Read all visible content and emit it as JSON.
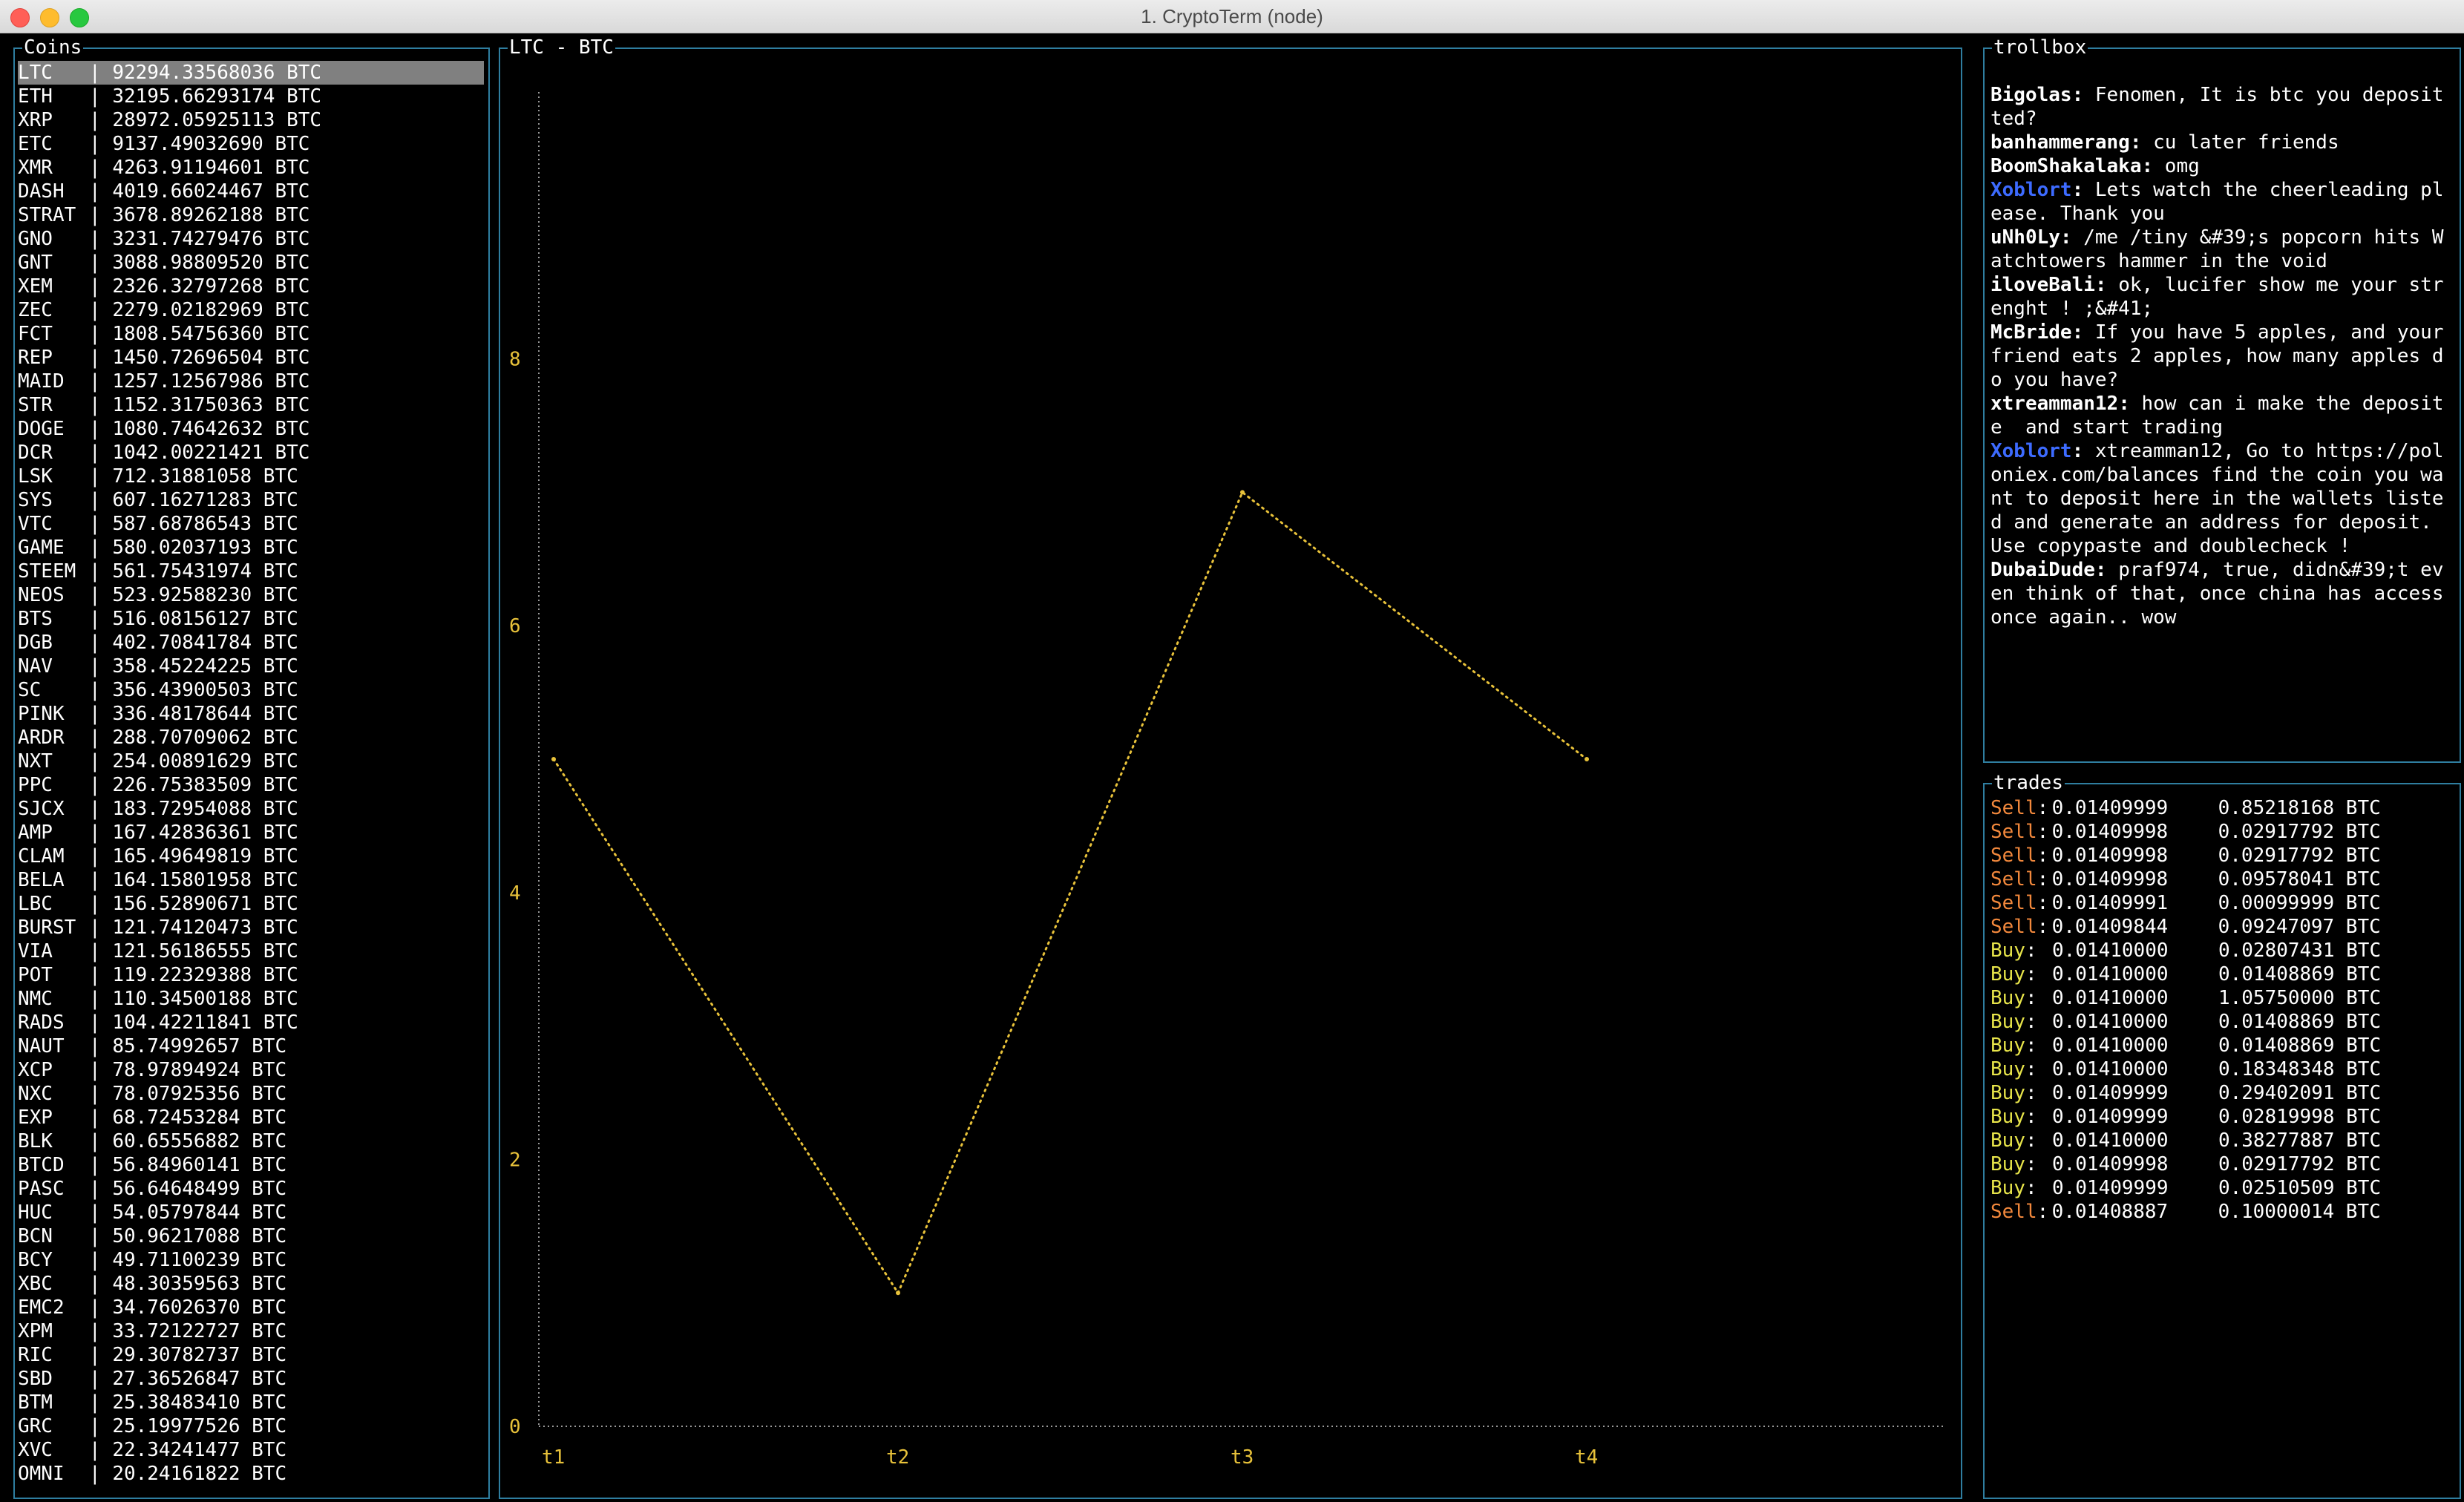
{
  "window": {
    "title": "1. CryptoTerm (node)"
  },
  "colors": {
    "border": "#2f7ea0",
    "line": "#e8c23a",
    "sell": "#f2883c",
    "buy": "#e8e54a",
    "moderator": "#3d6bff",
    "selected": "#808080"
  },
  "coins": {
    "label": "Coins",
    "selected_index": 0,
    "items": [
      {
        "symbol": "LTC",
        "volume": "92294.33568036 BTC"
      },
      {
        "symbol": "ETH",
        "volume": "32195.66293174 BTC"
      },
      {
        "symbol": "XRP",
        "volume": "28972.05925113 BTC"
      },
      {
        "symbol": "ETC",
        "volume": "9137.49032690 BTC"
      },
      {
        "symbol": "XMR",
        "volume": "4263.91194601 BTC"
      },
      {
        "symbol": "DASH",
        "volume": "4019.66024467 BTC"
      },
      {
        "symbol": "STRAT",
        "volume": "3678.89262188 BTC"
      },
      {
        "symbol": "GNO",
        "volume": "3231.74279476 BTC"
      },
      {
        "symbol": "GNT",
        "volume": "3088.98809520 BTC"
      },
      {
        "symbol": "XEM",
        "volume": "2326.32797268 BTC"
      },
      {
        "symbol": "ZEC",
        "volume": "2279.02182969 BTC"
      },
      {
        "symbol": "FCT",
        "volume": "1808.54756360 BTC"
      },
      {
        "symbol": "REP",
        "volume": "1450.72696504 BTC"
      },
      {
        "symbol": "MAID",
        "volume": "1257.12567986 BTC"
      },
      {
        "symbol": "STR",
        "volume": "1152.31750363 BTC"
      },
      {
        "symbol": "DOGE",
        "volume": "1080.74642632 BTC"
      },
      {
        "symbol": "DCR",
        "volume": "1042.00221421 BTC"
      },
      {
        "symbol": "LSK",
        "volume": "712.31881058 BTC"
      },
      {
        "symbol": "SYS",
        "volume": "607.16271283 BTC"
      },
      {
        "symbol": "VTC",
        "volume": "587.68786543 BTC"
      },
      {
        "symbol": "GAME",
        "volume": "580.02037193 BTC"
      },
      {
        "symbol": "STEEM",
        "volume": "561.75431974 BTC"
      },
      {
        "symbol": "NEOS",
        "volume": "523.92588230 BTC"
      },
      {
        "symbol": "BTS",
        "volume": "516.08156127 BTC"
      },
      {
        "symbol": "DGB",
        "volume": "402.70841784 BTC"
      },
      {
        "symbol": "NAV",
        "volume": "358.45224225 BTC"
      },
      {
        "symbol": "SC",
        "volume": "356.43900503 BTC"
      },
      {
        "symbol": "PINK",
        "volume": "336.48178644 BTC"
      },
      {
        "symbol": "ARDR",
        "volume": "288.70709062 BTC"
      },
      {
        "symbol": "NXT",
        "volume": "254.00891629 BTC"
      },
      {
        "symbol": "PPC",
        "volume": "226.75383509 BTC"
      },
      {
        "symbol": "SJCX",
        "volume": "183.72954088 BTC"
      },
      {
        "symbol": "AMP",
        "volume": "167.42836361 BTC"
      },
      {
        "symbol": "CLAM",
        "volume": "165.49649819 BTC"
      },
      {
        "symbol": "BELA",
        "volume": "164.15801958 BTC"
      },
      {
        "symbol": "LBC",
        "volume": "156.52890671 BTC"
      },
      {
        "symbol": "BURST",
        "volume": "121.74120473 BTC"
      },
      {
        "symbol": "VIA",
        "volume": "121.56186555 BTC"
      },
      {
        "symbol": "POT",
        "volume": "119.22329388 BTC"
      },
      {
        "symbol": "NMC",
        "volume": "110.34500188 BTC"
      },
      {
        "symbol": "RADS",
        "volume": "104.42211841 BTC"
      },
      {
        "symbol": "NAUT",
        "volume": "85.74992657 BTC"
      },
      {
        "symbol": "XCP",
        "volume": "78.97894924 BTC"
      },
      {
        "symbol": "NXC",
        "volume": "78.07925356 BTC"
      },
      {
        "symbol": "EXP",
        "volume": "68.72453284 BTC"
      },
      {
        "symbol": "BLK",
        "volume": "60.65556882 BTC"
      },
      {
        "symbol": "BTCD",
        "volume": "56.84960141 BTC"
      },
      {
        "symbol": "PASC",
        "volume": "56.64648499 BTC"
      },
      {
        "symbol": "HUC",
        "volume": "54.05797844 BTC"
      },
      {
        "symbol": "BCN",
        "volume": "50.96217088 BTC"
      },
      {
        "symbol": "BCY",
        "volume": "49.71100239 BTC"
      },
      {
        "symbol": "XBC",
        "volume": "48.30359563 BTC"
      },
      {
        "symbol": "EMC2",
        "volume": "34.76026370 BTC"
      },
      {
        "symbol": "XPM",
        "volume": "33.72122727 BTC"
      },
      {
        "symbol": "RIC",
        "volume": "29.30782737 BTC"
      },
      {
        "symbol": "SBD",
        "volume": "27.36526847 BTC"
      },
      {
        "symbol": "BTM",
        "volume": "25.38483410 BTC"
      },
      {
        "symbol": "GRC",
        "volume": "25.19977526 BTC"
      },
      {
        "symbol": "XVC",
        "volume": "22.34241477 BTC"
      },
      {
        "symbol": "OMNI",
        "volume": "20.24161822 BTC"
      }
    ]
  },
  "chart": {
    "label": "LTC - BTC"
  },
  "chart_data": {
    "type": "line",
    "title": "LTC - BTC",
    "x": [
      "t1",
      "t2",
      "t3",
      "t4"
    ],
    "series": [
      {
        "values": [
          5,
          1,
          7,
          5
        ]
      }
    ],
    "ylim": [
      0,
      10
    ],
    "yticks": [
      0,
      2,
      4,
      6,
      8
    ],
    "grid": false
  },
  "trollbox": {
    "label": "trollbox",
    "messages": [
      {
        "nick": "Bigolas",
        "text": " Fenomen, It is btc you depositted?",
        "mod": false
      },
      {
        "nick": "banhammerang",
        "text": " cu later friends",
        "mod": false
      },
      {
        "nick": "BoomShakalaka",
        "text": " omg",
        "mod": false
      },
      {
        "nick": "Xoblort",
        "text": " Lets watch the cheerleading please. Thank you",
        "mod": true
      },
      {
        "nick": "uNh0Ly",
        "text": " /me /tiny &#39;s popcorn hits Watchtowers hammer in the void",
        "mod": false
      },
      {
        "nick": "iloveBali",
        "text": " ok, lucifer show me your strenght ! ;&#41;",
        "mod": false
      },
      {
        "nick": "McBride",
        "text": " If you have 5 apples, and your friend eats 2 apples, how many apples do you have?",
        "mod": false
      },
      {
        "nick": "xtreamman12",
        "text": " how can i make the deposite  and start trading",
        "mod": false
      },
      {
        "nick": "Xoblort",
        "text": " xtreamman12, Go to https://poloniex.com/balances find the coin you want to deposit here in the wallets listed and generate an address for deposit. Use copypaste and doublecheck !",
        "mod": true
      },
      {
        "nick": "DubaiDude",
        "text": " praf974, true, didn&#39;t even think of that, once china has access once again.. wow",
        "mod": false
      }
    ]
  },
  "trades": {
    "label": "trades",
    "items": [
      {
        "side": "Sell",
        "price": "0.01409999",
        "amount": "0.85218168 BTC"
      },
      {
        "side": "Sell",
        "price": "0.01409998",
        "amount": "0.02917792 BTC"
      },
      {
        "side": "Sell",
        "price": "0.01409998",
        "amount": "0.02917792 BTC"
      },
      {
        "side": "Sell",
        "price": "0.01409998",
        "amount": "0.09578041 BTC"
      },
      {
        "side": "Sell",
        "price": "0.01409991",
        "amount": "0.00099999 BTC"
      },
      {
        "side": "Sell",
        "price": "0.01409844",
        "amount": "0.09247097 BTC"
      },
      {
        "side": "Buy",
        "price": "0.01410000",
        "amount": "0.02807431 BTC"
      },
      {
        "side": "Buy",
        "price": "0.01410000",
        "amount": "0.01408869 BTC"
      },
      {
        "side": "Buy",
        "price": "0.01410000",
        "amount": "1.05750000 BTC"
      },
      {
        "side": "Buy",
        "price": "0.01410000",
        "amount": "0.01408869 BTC"
      },
      {
        "side": "Buy",
        "price": "0.01410000",
        "amount": "0.01408869 BTC"
      },
      {
        "side": "Buy",
        "price": "0.01410000",
        "amount": "0.18348348 BTC"
      },
      {
        "side": "Buy",
        "price": "0.01409999",
        "amount": "0.29402091 BTC"
      },
      {
        "side": "Buy",
        "price": "0.01409999",
        "amount": "0.02819998 BTC"
      },
      {
        "side": "Buy",
        "price": "0.01410000",
        "amount": "0.38277887 BTC"
      },
      {
        "side": "Buy",
        "price": "0.01409998",
        "amount": "0.02917792 BTC"
      },
      {
        "side": "Buy",
        "price": "0.01409999",
        "amount": "0.02510509 BTC"
      },
      {
        "side": "Sell",
        "price": "0.01408887",
        "amount": "0.10000014 BTC"
      }
    ]
  }
}
